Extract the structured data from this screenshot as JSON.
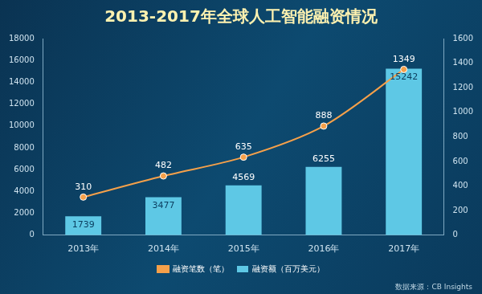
{
  "chart_data": {
    "type": "bar",
    "title": "2013-2017年全球人工智能融资情况",
    "categories": [
      "2013年",
      "2014年",
      "2015年",
      "2016年",
      "2017年"
    ],
    "series": [
      {
        "name": "融资额（百万美元）",
        "type": "bar",
        "color": "#5ec8e5",
        "values": [
          1739,
          3477,
          4569,
          6255,
          15242
        ]
      },
      {
        "name": "融资笔数（笔）",
        "type": "line",
        "axis": "y2",
        "color": "#f5a04a",
        "marker": "circle",
        "values": [
          310,
          482,
          635,
          888,
          1349
        ]
      }
    ],
    "ylim": [
      0,
      18000
    ],
    "yticks": [
      0,
      2000,
      4000,
      6000,
      8000,
      10000,
      12000,
      14000,
      16000,
      18000
    ],
    "y2lim": [
      0,
      1600
    ],
    "y2ticks": [
      0,
      200,
      400,
      600,
      800,
      1000,
      1200,
      1400,
      1600
    ],
    "data_labels": true,
    "legend": "bottom",
    "grid": false,
    "annotations": [
      "数据来源：CB Insights"
    ]
  }
}
